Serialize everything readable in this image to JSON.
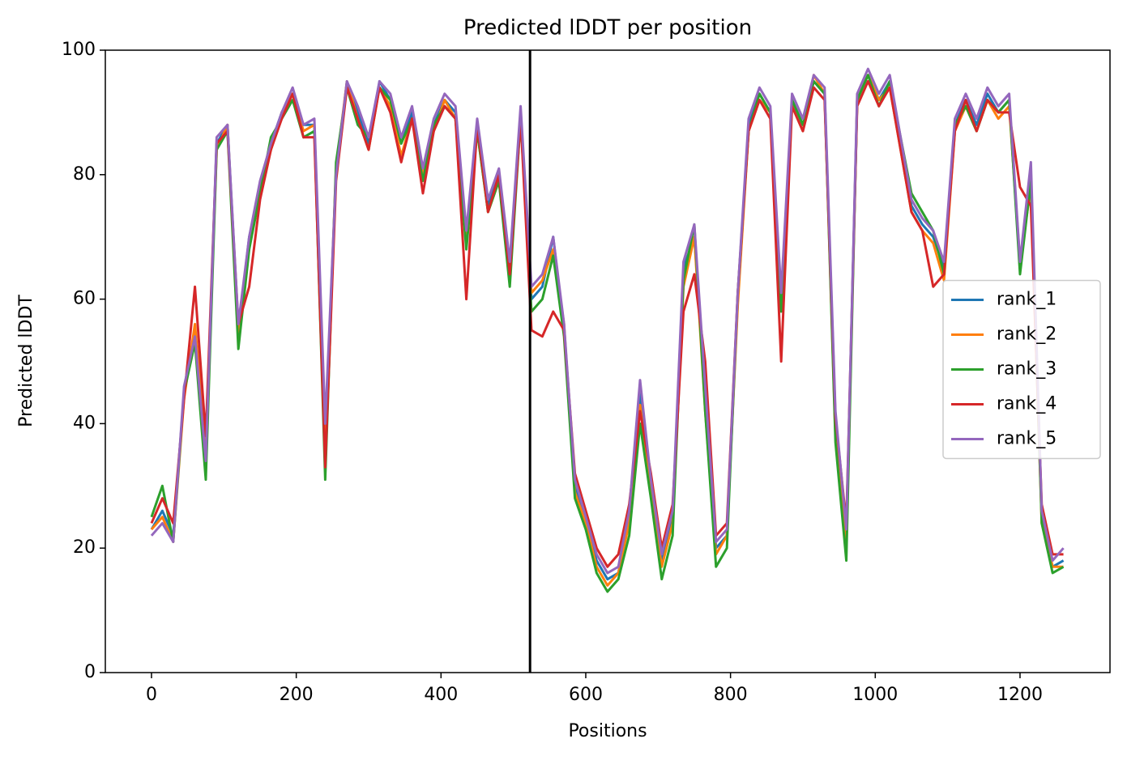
{
  "chart_data": {
    "type": "line",
    "title": "Predicted lDDT per position",
    "x_label": "Positions",
    "y_label": "Predicted lDDT",
    "x": [
      0,
      15,
      30,
      45,
      60,
      75,
      90,
      105,
      120,
      135,
      150,
      165,
      180,
      195,
      210,
      225,
      240,
      255,
      270,
      285,
      300,
      315,
      330,
      345,
      360,
      375,
      390,
      405,
      420,
      435,
      450,
      465,
      480,
      495,
      510,
      525,
      540,
      555,
      570,
      585,
      600,
      615,
      630,
      645,
      660,
      675,
      690,
      705,
      720,
      735,
      750,
      765,
      780,
      795,
      810,
      825,
      840,
      855,
      870,
      885,
      900,
      915,
      930,
      945,
      960,
      975,
      990,
      1005,
      1020,
      1035,
      1050,
      1065,
      1080,
      1095,
      1110,
      1125,
      1140,
      1155,
      1170,
      1185,
      1200,
      1215,
      1230,
      1245,
      1260
    ],
    "series": [
      {
        "name": "rank_1",
        "color": "#1f77b4",
        "values": [
          23,
          26,
          22,
          45,
          55,
          35,
          85,
          88,
          55,
          70,
          78,
          85,
          90,
          93,
          88,
          88,
          35,
          80,
          95,
          90,
          85,
          95,
          92,
          85,
          90,
          80,
          88,
          92,
          90,
          70,
          88,
          75,
          80,
          65,
          90,
          60,
          62,
          70,
          55,
          30,
          24,
          18,
          15,
          16,
          25,
          45,
          30,
          18,
          25,
          65,
          70,
          45,
          20,
          22,
          60,
          88,
          93,
          90,
          60,
          92,
          88,
          95,
          93,
          40,
          22,
          92,
          96,
          92,
          95,
          85,
          75,
          72,
          70,
          65,
          88,
          92,
          88,
          93,
          90,
          92,
          65,
          80,
          25,
          17,
          18
        ]
      },
      {
        "name": "rank_2",
        "color": "#ff7f0e",
        "values": [
          23,
          25,
          21,
          44,
          56,
          36,
          84,
          88,
          54,
          69,
          78,
          84,
          90,
          93,
          87,
          88,
          37,
          81,
          95,
          89,
          84,
          94,
          91,
          83,
          89,
          80,
          87,
          92,
          89,
          70,
          87,
          74,
          79,
          64,
          89,
          61,
          63,
          68,
          56,
          29,
          24,
          17,
          14,
          16,
          24,
          43,
          29,
          17,
          24,
          62,
          70,
          42,
          19,
          22,
          59,
          87,
          92,
          90,
          59,
          91,
          87,
          96,
          93,
          38,
          21,
          92,
          96,
          92,
          94,
          84,
          74,
          71,
          69,
          63,
          87,
          91,
          87,
          92,
          89,
          91,
          66,
          78,
          24,
          17,
          17
        ]
      },
      {
        "name": "rank_3",
        "color": "#2ca02c",
        "values": [
          25,
          30,
          21,
          45,
          53,
          31,
          84,
          87,
          52,
          68,
          77,
          86,
          89,
          92,
          86,
          87,
          31,
          82,
          94,
          88,
          86,
          94,
          92,
          85,
          89,
          79,
          88,
          91,
          89,
          68,
          87,
          74,
          79,
          62,
          89,
          58,
          60,
          67,
          54,
          28,
          23,
          16,
          13,
          15,
          22,
          40,
          28,
          15,
          22,
          63,
          72,
          42,
          17,
          20,
          61,
          87,
          93,
          90,
          58,
          92,
          88,
          95,
          93,
          37,
          18,
          92,
          96,
          91,
          95,
          86,
          77,
          74,
          71,
          64,
          88,
          91,
          87,
          92,
          90,
          92,
          64,
          79,
          24,
          16,
          17
        ]
      },
      {
        "name": "rank_4",
        "color": "#d62728",
        "values": [
          24,
          28,
          24,
          44,
          62,
          38,
          85,
          87,
          56,
          62,
          76,
          84,
          89,
          93,
          86,
          86,
          33,
          79,
          94,
          89,
          84,
          94,
          90,
          82,
          89,
          77,
          87,
          91,
          89,
          60,
          88,
          74,
          80,
          64,
          89,
          55,
          54,
          58,
          55,
          32,
          26,
          20,
          17,
          19,
          27,
          42,
          32,
          20,
          27,
          58,
          64,
          50,
          22,
          24,
          61,
          87,
          92,
          89,
          50,
          91,
          87,
          94,
          92,
          41,
          24,
          91,
          95,
          91,
          94,
          84,
          74,
          71,
          62,
          64,
          87,
          92,
          87,
          92,
          90,
          90,
          78,
          75,
          27,
          19,
          19
        ]
      },
      {
        "name": "rank_5",
        "color": "#9467bd",
        "values": [
          22,
          24,
          21,
          46,
          54,
          34,
          86,
          88,
          56,
          70,
          79,
          85,
          90,
          94,
          88,
          89,
          40,
          80,
          95,
          91,
          86,
          95,
          93,
          86,
          91,
          81,
          89,
          93,
          91,
          71,
          89,
          76,
          81,
          66,
          91,
          62,
          64,
          70,
          56,
          31,
          25,
          19,
          16,
          17,
          26,
          47,
          31,
          19,
          26,
          66,
          72,
          46,
          21,
          23,
          61,
          89,
          94,
          91,
          61,
          93,
          89,
          96,
          94,
          42,
          23,
          93,
          97,
          93,
          96,
          86,
          76,
          73,
          71,
          66,
          89,
          93,
          89,
          94,
          91,
          93,
          66,
          82,
          26,
          18,
          20
        ]
      }
    ],
    "vline": 523,
    "vline_color": "#000000",
    "xlim": [
      -63.8,
      1324.3
    ],
    "xticks": [
      0,
      200,
      400,
      600,
      800,
      1000,
      1200
    ],
    "ylim": [
      0,
      100
    ],
    "yticks": [
      0,
      20,
      40,
      60,
      80,
      100
    ],
    "grid": false,
    "legend": "center right"
  }
}
